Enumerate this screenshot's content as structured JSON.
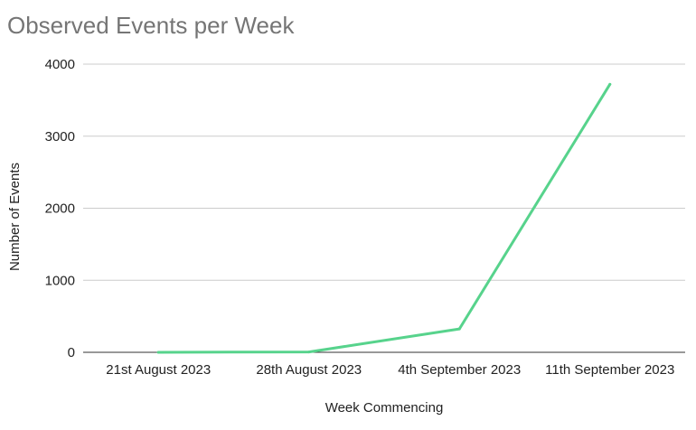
{
  "chart_data": {
    "type": "line",
    "title": "Observed Events per Week",
    "xlabel": "Week Commencing",
    "ylabel": "Number of Events",
    "categories": [
      "21st August 2023",
      "28th August 2023",
      "4th September 2023",
      "11th September 2023"
    ],
    "series": [
      {
        "values": [
          0,
          5,
          325,
          3720
        ],
        "color": "#57d38c"
      }
    ],
    "ylim": [
      0,
      4000
    ],
    "yticks": [
      "0",
      "1000",
      "2000",
      "3000",
      "4000"
    ],
    "grid": true,
    "legend": "none"
  }
}
